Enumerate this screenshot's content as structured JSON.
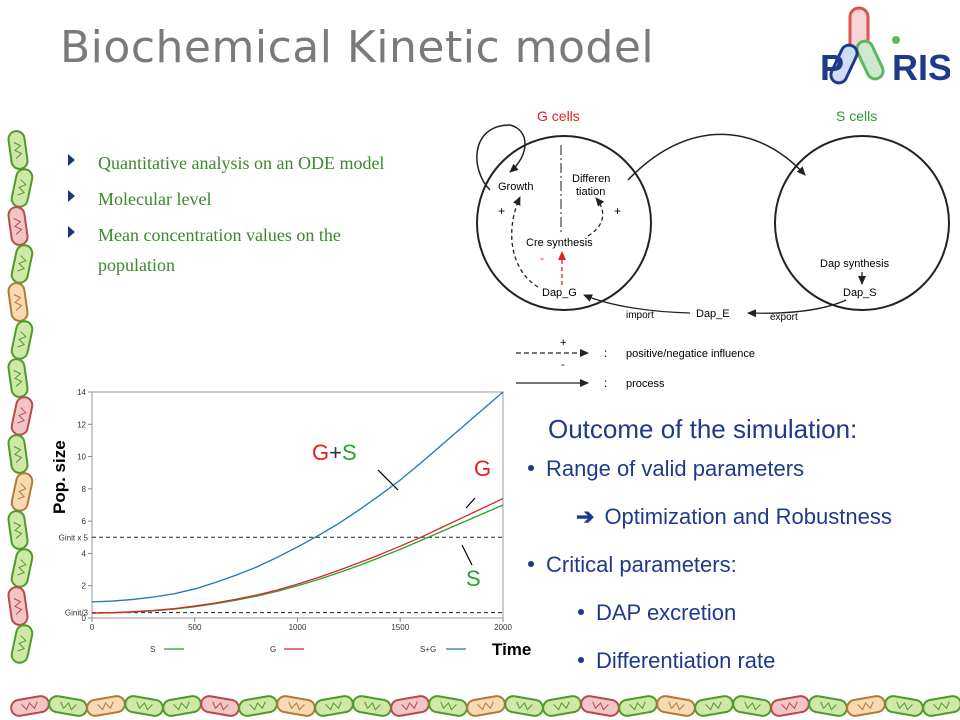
{
  "slide": {
    "title": "Biochemical Kinetic model",
    "logo": {
      "text": "PARIS",
      "color_red": "#d9534f",
      "color_green": "#5cb85c",
      "color_blue": "#1f3a8a"
    },
    "bullets": [
      "Quantitative analysis on an ODE model",
      "Molecular level",
      "Mean concentration values on the population"
    ],
    "outcome": {
      "heading": "Outcome of the simulation:",
      "items": [
        {
          "text": "Range of valid parameters",
          "level": 1
        },
        {
          "text": "Optimization and Robustness",
          "level": 2,
          "arrow": true
        },
        {
          "text": "Critical parameters:",
          "level": 1
        },
        {
          "text": "DAP excretion",
          "level": 3
        },
        {
          "text": "Differentiation rate",
          "level": 3
        }
      ]
    }
  },
  "diagram": {
    "g_cells_label": "G cells",
    "s_cells_label": "S cells",
    "growth": "Growth",
    "differentiation": "Differen\ntiation",
    "cre_synthesis": "Cre synthesis",
    "dap_g": "Dap_G",
    "dap_synthesis": "Dap synthesis",
    "dap_s": "Dap_S",
    "dap_e": "Dap_E",
    "import": "import",
    "export": "export",
    "plus1": "+",
    "plus2": "+",
    "minus": "-",
    "legend": {
      "dashed_symbols": "+\n-",
      "colon1": ":",
      "influence_label": "positive/negatice influence",
      "colon2": ":",
      "process_label": "process"
    },
    "colors": {
      "red": "#e02020",
      "black": "#222222"
    }
  },
  "chart_data": {
    "type": "line",
    "xlabel": "Time",
    "ylabel": "Pop.  size",
    "xlim": [
      0,
      2000
    ],
    "ylim": [
      0,
      14
    ],
    "x_ticks": [
      0,
      500,
      1000,
      1500,
      2000
    ],
    "y_ticks": [
      0,
      2,
      4,
      6,
      8,
      10,
      12,
      14
    ],
    "x": [
      0,
      100,
      200,
      300,
      400,
      500,
      600,
      700,
      800,
      900,
      1000,
      1100,
      1200,
      1300,
      1400,
      1500,
      1600,
      1700,
      1800,
      1900,
      2000
    ],
    "series": [
      {
        "name": "S",
        "color": "#2ca02c",
        "values": [
          0.3,
          0.32,
          0.37,
          0.44,
          0.55,
          0.7,
          0.88,
          1.1,
          1.35,
          1.65,
          2.0,
          2.38,
          2.8,
          3.25,
          3.75,
          4.25,
          4.8,
          5.35,
          5.9,
          6.45,
          7.0
        ]
      },
      {
        "name": "G",
        "color": "#d62728",
        "values": [
          0.3,
          0.33,
          0.39,
          0.47,
          0.58,
          0.74,
          0.93,
          1.16,
          1.42,
          1.73,
          2.1,
          2.5,
          2.95,
          3.42,
          3.92,
          4.45,
          5.0,
          5.6,
          6.2,
          6.8,
          7.4
        ]
      },
      {
        "name": "S+G",
        "color": "#1f77b4",
        "values": [
          1.0,
          1.05,
          1.15,
          1.3,
          1.5,
          1.8,
          2.2,
          2.65,
          3.15,
          3.75,
          4.4,
          5.1,
          5.85,
          6.7,
          7.6,
          8.55,
          9.6,
          10.7,
          11.8,
          12.9,
          14.0
        ]
      }
    ],
    "reference_lines": [
      {
        "label": "Ginit x 5",
        "y": 5.0
      },
      {
        "label": "Ginit/3",
        "y": 0.33
      }
    ],
    "legend_entries": [
      "S",
      "G",
      "S+G"
    ],
    "annotations": {
      "gs": "G+S",
      "gs_g_part": "G",
      "gs_plus": "+",
      "gs_s_part": "S",
      "g": "G",
      "s": "S"
    },
    "grid": false
  }
}
